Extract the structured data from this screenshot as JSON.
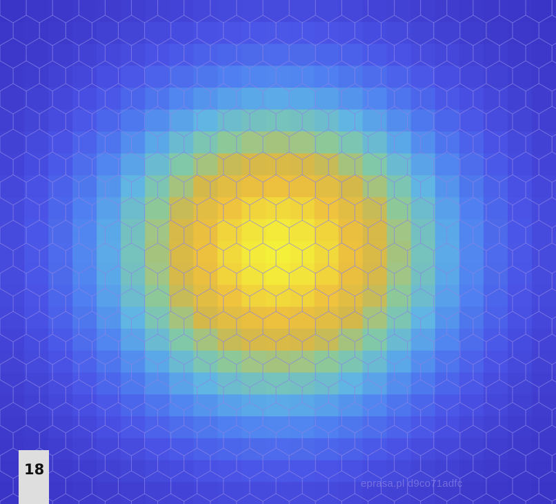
{
  "page_number": "18",
  "watermark": "eprasa.pl d9co71adfc",
  "colors": {
    "background": "#3a33c4",
    "peak": "#f4f03a",
    "hex_grid_stroke": "#8c86e6",
    "page_number_box": "#dedede"
  },
  "heatmap": {
    "description_type": "pixelated 2D gaussian peak with hexagonal grid overlay",
    "grid_cells": 23,
    "peak_cell": [
      11,
      11
    ],
    "colormap": [
      "#3a33c4",
      "#4a52e6",
      "#4f7ff0",
      "#5fb4e6",
      "#86cba0",
      "#d4b84a",
      "#efc13d",
      "#f4f03a"
    ]
  }
}
